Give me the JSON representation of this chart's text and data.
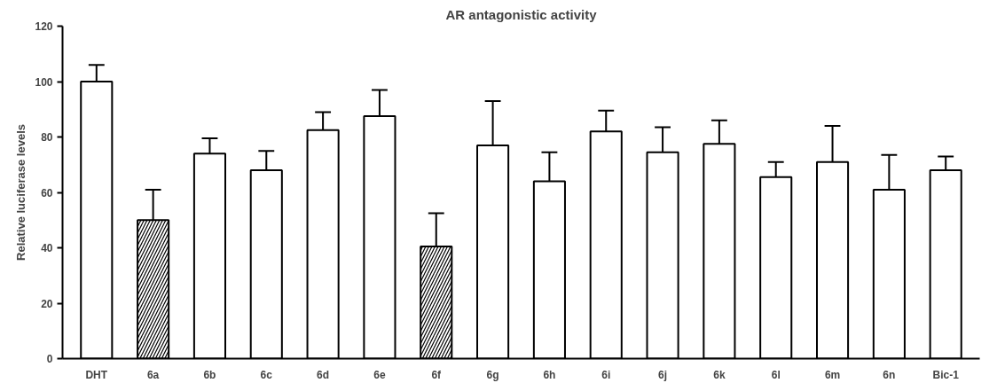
{
  "chart_data": {
    "type": "bar",
    "title": "AR antagonistic activity",
    "ylabel": "Relative luciferase levels",
    "categories": [
      "DHT",
      "6a",
      "6b",
      "6c",
      "6d",
      "6e",
      "6f",
      "6g",
      "6h",
      "6i",
      "6j",
      "6k",
      "6l",
      "6m",
      "6n",
      "Bic-1"
    ],
    "values": [
      100,
      50,
      74,
      68,
      82.5,
      87.5,
      40.5,
      77,
      64,
      82,
      74.5,
      77.5,
      65.5,
      71,
      61,
      68
    ],
    "colors": [
      "#ffffff",
      "#000000",
      "#ffffff",
      "#ffffff",
      "#ffffff",
      "#ffffff",
      "#000000",
      "#ffffff",
      "#ffffff",
      "#ffffff",
      "#ffffff",
      "#ffffff",
      "#ffffff",
      "#ffffff",
      "#ffffff",
      "#ffffff"
    ],
    "errors": [
      [
        100,
        106
      ],
      [
        50,
        61
      ],
      [
        74,
        79.5
      ],
      [
        68,
        75
      ],
      [
        82.5,
        89
      ],
      [
        87.5,
        97
      ],
      [
        40.5,
        52.5
      ],
      [
        77,
        93
      ],
      [
        64,
        74.5
      ],
      [
        82,
        89.5
      ],
      [
        74.5,
        83.5
      ],
      [
        77.5,
        86
      ],
      [
        65.5,
        71
      ],
      [
        71,
        84
      ],
      [
        61,
        73.5
      ],
      [
        68,
        73
      ]
    ],
    "ylim": [
      0,
      120
    ],
    "yticks": [
      0,
      20,
      40,
      60,
      80,
      100,
      120
    ],
    "grid": false
  }
}
